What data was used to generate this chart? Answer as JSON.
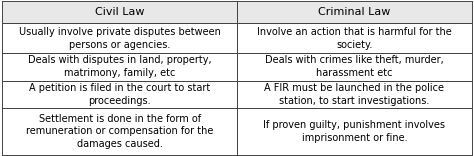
{
  "title_row": [
    "Civil Law",
    "Criminal Law"
  ],
  "rows": [
    [
      "Usually involve private disputes between\npersons or agencies.",
      "Involve an action that is harmful for the\nsociety."
    ],
    [
      "Deals with disputes in land, property,\nmatrimony, family, etc",
      "Deals with crimes like theft, murder,\nharassment etc"
    ],
    [
      "A petition is filed in the court to start\nproceedings.",
      "A FIR must be launched in the police\nstation, to start investigations."
    ],
    [
      "Settlement is done in the form of\nremuneration or compensation for the\ndamages caused.",
      "If proven guilty, punishment involves\nimprisonment or fine."
    ]
  ],
  "bg_color": "#ffffff",
  "header_bg": "#e8e8e8",
  "cell_bg": "#ffffff",
  "border_color": "#444444",
  "text_color": "#000000",
  "font_size": 7.0,
  "header_font_size": 8.0,
  "fig_width": 4.74,
  "fig_height": 1.56,
  "dpi": 100
}
